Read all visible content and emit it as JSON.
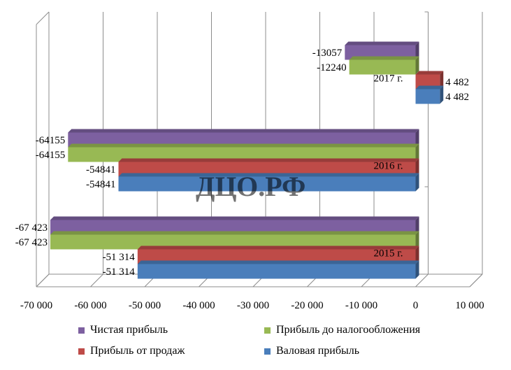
{
  "chart_data": {
    "type": "bar",
    "orientation": "horizontal",
    "three_d": true,
    "categories": [
      "2015 г.",
      "2016 г.",
      "2017 г."
    ],
    "series": [
      {
        "name": "Валовая прибыль",
        "color": "#4a7ebb",
        "values": [
          -51314,
          -54841,
          4482
        ],
        "labels": [
          "-51 314",
          "-54841",
          "4 482"
        ]
      },
      {
        "name": "Прибыль от продаж",
        "color": "#be4b48",
        "values": [
          -51314,
          -54841,
          4482
        ],
        "labels": [
          "-51 314",
          "-54841",
          "4 482"
        ]
      },
      {
        "name": "Прибыль до налогообложения",
        "color": "#98b954",
        "values": [
          -67423,
          -64155,
          -12240
        ],
        "labels": [
          "-67 423",
          "-64155",
          "-12240"
        ]
      },
      {
        "name": "Чистая прибыль",
        "color": "#7d60a0",
        "values": [
          -67423,
          -64155,
          -13057
        ],
        "labels": [
          "-67 423",
          "-64155",
          "-13057"
        ]
      }
    ],
    "xlim": [
      -70000,
      10000
    ],
    "x_ticks": [
      -70000,
      -60000,
      -50000,
      -40000,
      -30000,
      -20000,
      -10000,
      0,
      10000
    ],
    "x_tick_labels": [
      "-70 000",
      "-60 000",
      "-50 000",
      "-40 000",
      "-30 000",
      "-20 000",
      "-10 000",
      "0",
      "10 000"
    ],
    "grid": true,
    "legend_position": "bottom",
    "watermark": "ДЦО.РФ"
  },
  "legend": {
    "items": [
      {
        "label": "Чистая прибыль",
        "color": "#7d60a0"
      },
      {
        "label": "Прибыль до налогообложения",
        "color": "#98b954"
      },
      {
        "label": "Прибыль от продаж",
        "color": "#be4b48"
      },
      {
        "label": "Валовая прибыль",
        "color": "#4a7ebb"
      }
    ]
  }
}
